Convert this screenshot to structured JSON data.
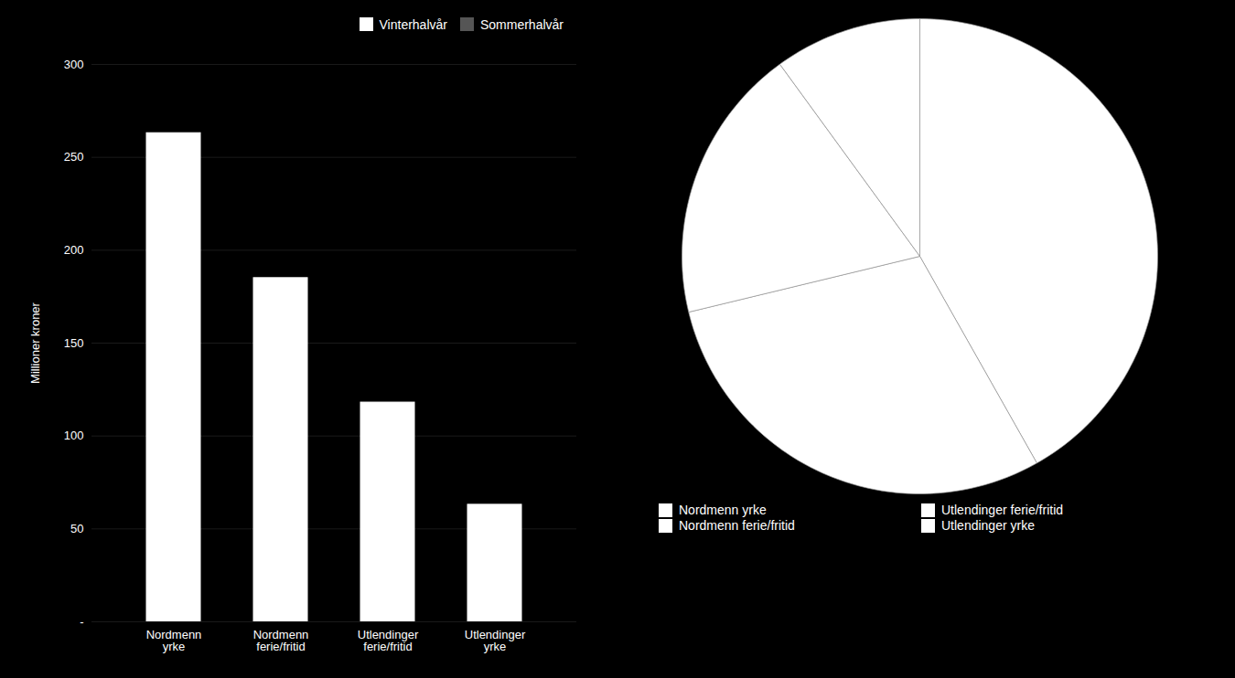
{
  "chart_data": [
    {
      "type": "bar",
      "categories": [
        "Nordmenn\nyrke",
        "Nordmenn\nferie/fritid",
        "Utlendinger\nferie/fritid",
        "Utlendinger\nyrke"
      ],
      "series": [
        {
          "name": "Vinterhalvår",
          "color": "#ffffff",
          "values": [
            263,
            185,
            118,
            63
          ]
        },
        {
          "name": "Sommerhalvår",
          "color": "#555555",
          "values": [
            null,
            null,
            null,
            null
          ]
        }
      ],
      "stacked": true,
      "ylabel": "Millioner kroner",
      "ylim": [
        0,
        300
      ],
      "yticks": [
        {
          "value": 0,
          "label": "-"
        },
        50,
        100,
        150,
        200,
        250,
        300
      ],
      "grid": true,
      "legend": "upper right"
    },
    {
      "type": "pie",
      "categories": [
        "Nordmenn yrke",
        "Nordmenn ferie/fritid",
        "Utlendinger ferie/fritid",
        "Utlendinger yrke"
      ],
      "values": [
        263,
        185,
        118,
        63
      ],
      "colors": [
        "#ffffff",
        "#ffffff",
        "#ffffff",
        "#ffffff"
      ],
      "legend": "bottom"
    }
  ]
}
